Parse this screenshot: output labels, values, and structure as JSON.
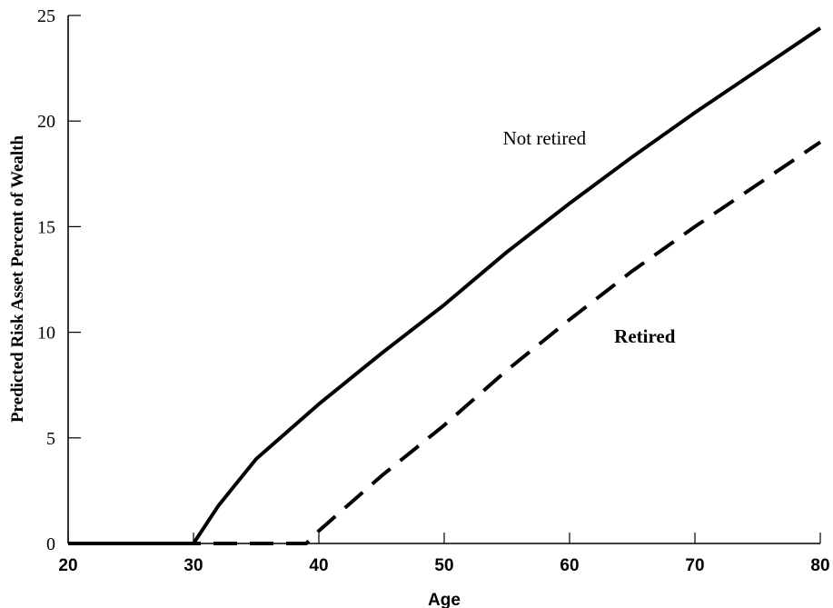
{
  "chart_data": {
    "type": "line",
    "title": "",
    "xlabel": "Age",
    "ylabel": "Predicted Risk Asset Percent of Wealth",
    "xlim": [
      20,
      80
    ],
    "ylim": [
      0,
      25
    ],
    "x_ticks": [
      20,
      30,
      40,
      50,
      60,
      70,
      80
    ],
    "y_ticks": [
      0,
      5,
      10,
      15,
      20,
      25
    ],
    "grid": false,
    "legend": "none",
    "series": [
      {
        "name": "Not retired",
        "line_style": "solid",
        "color": "#000000",
        "x": [
          20,
          25,
          30,
          32,
          35,
          40,
          45,
          50,
          55,
          60,
          65,
          70,
          75,
          80
        ],
        "y": [
          0,
          0,
          0,
          1.8,
          4.0,
          6.6,
          9.0,
          11.3,
          13.8,
          16.1,
          18.3,
          20.4,
          22.4,
          24.4
        ]
      },
      {
        "name": "Retired",
        "line_style": "dashed",
        "color": "#000000",
        "x": [
          20,
          25,
          30,
          35,
          39,
          40,
          45,
          50,
          55,
          60,
          65,
          70,
          75,
          80
        ],
        "y": [
          0,
          0,
          0,
          0,
          0,
          0.6,
          3.2,
          5.6,
          8.2,
          10.6,
          12.9,
          15.0,
          17.0,
          19.0
        ]
      }
    ],
    "annotations": [
      {
        "text": "Not retired",
        "x": 58,
        "y": 18.9,
        "weight": "normal"
      },
      {
        "text": "Retired",
        "x": 66,
        "y": 9.5,
        "weight": "bold"
      }
    ]
  }
}
